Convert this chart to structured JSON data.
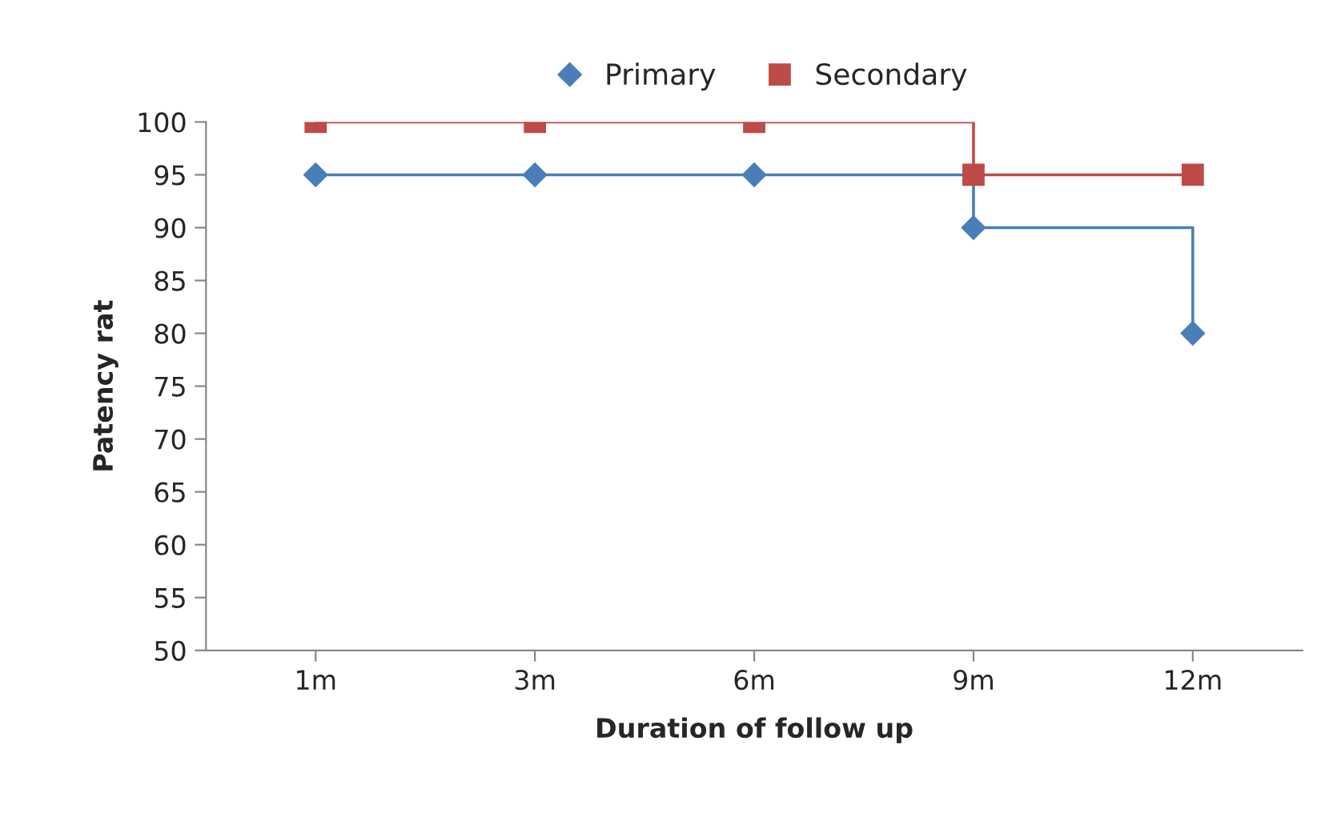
{
  "chart_data": {
    "type": "step",
    "xlabel": "Duration of follow up",
    "ylabel": "Patency rat",
    "categories": [
      "1m",
      "3m",
      "6m",
      "9m",
      "12m"
    ],
    "series": [
      {
        "name": "Primary",
        "color": "#4a7ebb",
        "marker": "diamond",
        "values": [
          95,
          95,
          95,
          90,
          80
        ]
      },
      {
        "name": "Secondary",
        "color": "#be4b48",
        "marker": "square",
        "values": [
          100,
          100,
          100,
          95,
          95
        ]
      }
    ],
    "ylim": [
      50,
      100
    ],
    "yticks": [
      50,
      55,
      60,
      65,
      70,
      75,
      80,
      85,
      90,
      95,
      100
    ],
    "grid": false,
    "legend": "top"
  }
}
